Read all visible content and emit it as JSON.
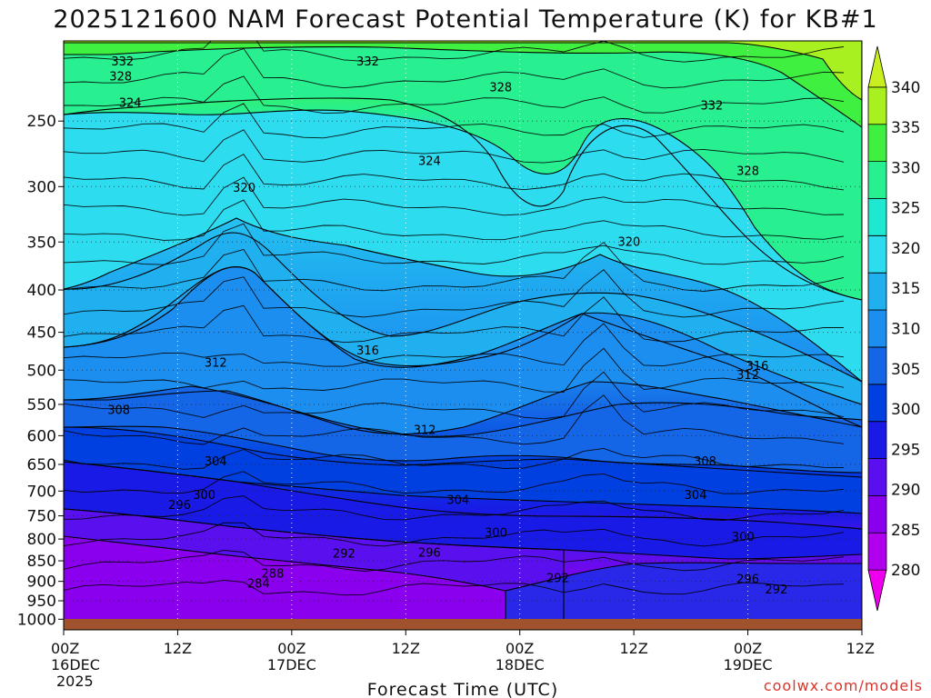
{
  "chart_data": {
    "type": "heatmap",
    "title": "2025121600 NAM Forecast Potential Temperature (K) for KB#1",
    "xlabel": "Forecast Time (UTC)",
    "ylabel": "",
    "pressure_ticks": [
      "250",
      "300",
      "350",
      "400",
      "450",
      "500",
      "550",
      "600",
      "650",
      "700",
      "750",
      "800",
      "850",
      "900",
      "950",
      "1000"
    ],
    "ylim": [
      1030,
      200
    ],
    "x_ticks": [
      {
        "hour": 0,
        "line1": "00Z",
        "line2": "16DEC",
        "line3": "2025"
      },
      {
        "hour": 12,
        "line1": "12Z",
        "line2": "",
        "line3": ""
      },
      {
        "hour": 24,
        "line1": "00Z",
        "line2": "17DEC",
        "line3": ""
      },
      {
        "hour": 36,
        "line1": "12Z",
        "line2": "",
        "line3": ""
      },
      {
        "hour": 48,
        "line1": "00Z",
        "line2": "18DEC",
        "line3": ""
      },
      {
        "hour": 60,
        "line1": "12Z",
        "line2": "",
        "line3": ""
      },
      {
        "hour": 72,
        "line1": "00Z",
        "line2": "19DEC",
        "line3": ""
      },
      {
        "hour": 84,
        "line1": "12Z",
        "line2": "",
        "line3": ""
      }
    ],
    "xlim": [
      0,
      84
    ],
    "colorbar": {
      "levels": [
        280,
        285,
        290,
        295,
        300,
        305,
        310,
        315,
        320,
        325,
        330,
        335,
        340
      ],
      "labels": [
        "280",
        "285",
        "290",
        "295",
        "300",
        "305",
        "310",
        "315",
        "320",
        "325",
        "330",
        "335",
        "340"
      ],
      "colors": [
        "#ee00ee",
        "#b000ee",
        "#8a00ee",
        "#5a10ee",
        "#1a1ae6",
        "#0040e0",
        "#1466e6",
        "#1c8ef0",
        "#20b0f0",
        "#2edcf0",
        "#1ee8d0",
        "#28f090",
        "#40f040",
        "#a8f020",
        "#c8f020"
      ]
    },
    "contour_labels": [
      {
        "text": "332",
        "t": 6.2,
        "p": 213
      },
      {
        "text": "328",
        "t": 6.0,
        "p": 222
      },
      {
        "text": "324",
        "t": 7.0,
        "p": 239
      },
      {
        "text": "332",
        "t": 32.0,
        "p": 213
      },
      {
        "text": "328",
        "t": 46.0,
        "p": 229
      },
      {
        "text": "324",
        "t": 38.5,
        "p": 281
      },
      {
        "text": "320",
        "t": 19.0,
        "p": 303
      },
      {
        "text": "332",
        "t": 68.2,
        "p": 241
      },
      {
        "text": "328",
        "t": 72.0,
        "p": 289
      },
      {
        "text": "320",
        "t": 59.5,
        "p": 352
      },
      {
        "text": "316",
        "t": 32.0,
        "p": 476
      },
      {
        "text": "312",
        "t": 16.0,
        "p": 493
      },
      {
        "text": "316",
        "t": 73.0,
        "p": 497
      },
      {
        "text": "312",
        "t": 72.0,
        "p": 510
      },
      {
        "text": "312",
        "t": 38.0,
        "p": 594
      },
      {
        "text": "308",
        "t": 5.8,
        "p": 562
      },
      {
        "text": "304",
        "t": 16.0,
        "p": 648
      },
      {
        "text": "308",
        "t": 67.5,
        "p": 648
      },
      {
        "text": "300",
        "t": 14.8,
        "p": 712
      },
      {
        "text": "296",
        "t": 12.2,
        "p": 732
      },
      {
        "text": "304",
        "t": 41.5,
        "p": 722
      },
      {
        "text": "304",
        "t": 66.5,
        "p": 712
      },
      {
        "text": "300",
        "t": 45.5,
        "p": 791
      },
      {
        "text": "300",
        "t": 71.5,
        "p": 800
      },
      {
        "text": "296",
        "t": 38.5,
        "p": 836
      },
      {
        "text": "292",
        "t": 29.5,
        "p": 838
      },
      {
        "text": "288",
        "t": 22.0,
        "p": 886
      },
      {
        "text": "284",
        "t": 20.5,
        "p": 911
      },
      {
        "text": "292",
        "t": 52.0,
        "p": 897
      },
      {
        "text": "296",
        "t": 72.0,
        "p": 900
      },
      {
        "text": "292",
        "t": 75.0,
        "p": 926
      }
    ]
  },
  "footer": {
    "credit": "coolwx.com/models"
  },
  "colors": {
    "ground": "#a0522d"
  }
}
